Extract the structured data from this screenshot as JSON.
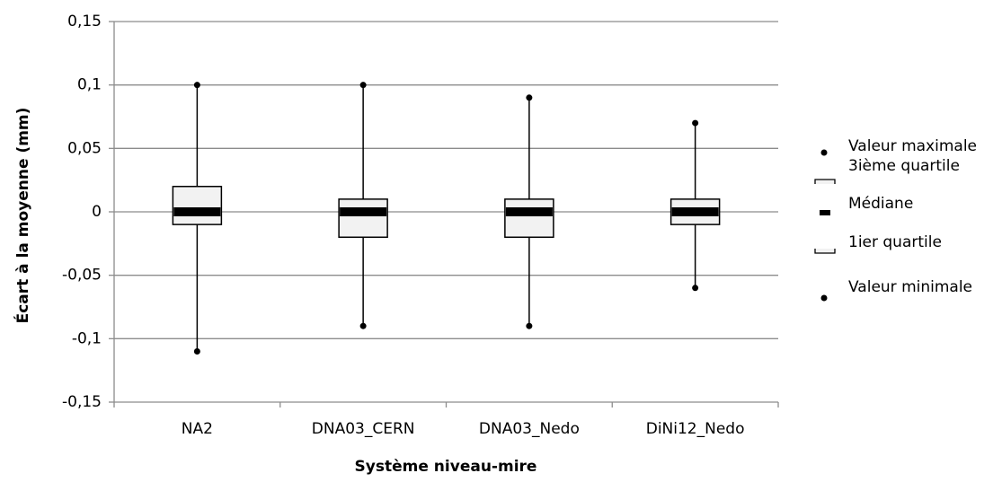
{
  "chart_data": {
    "type": "box",
    "x_label": "Système niveau-mire",
    "y_label": "Écart à la moyenne (mm)",
    "categories": [
      "NA2",
      "DNA03_CERN",
      "DNA03_Nedo",
      "DiNi12_Nedo"
    ],
    "series": [
      {
        "name": "Valeur maximale",
        "color": "#000000",
        "values": [
          0.1,
          0.1,
          0.09,
          0.07
        ]
      },
      {
        "name": "3ième quartile",
        "color": "#f2f2f2",
        "values": [
          0.02,
          0.01,
          0.01,
          0.01
        ]
      },
      {
        "name": "Médiane",
        "color": "#000000",
        "values": [
          0,
          0,
          0,
          0
        ]
      },
      {
        "name": "1ier quartile",
        "color": "#f2f2f2",
        "values": [
          -0.01,
          -0.02,
          -0.02,
          -0.01
        ]
      },
      {
        "name": "Valeur minimale",
        "color": "#000000",
        "values": [
          -0.11,
          -0.09,
          -0.09,
          -0.06
        ]
      }
    ],
    "ylim": [
      -0.15,
      0.15
    ],
    "yticks": [
      {
        "value": 0.15,
        "label": "0,15"
      },
      {
        "value": 0.1,
        "label": "0,1"
      },
      {
        "value": 0.05,
        "label": "0,05"
      },
      0,
      {
        "value": -0.05,
        "label": "-0,05"
      },
      {
        "value": -0.1,
        "label": "-0,1"
      },
      {
        "value": -0.15,
        "label": "-0,15"
      }
    ],
    "grid": true,
    "legend": "right"
  }
}
